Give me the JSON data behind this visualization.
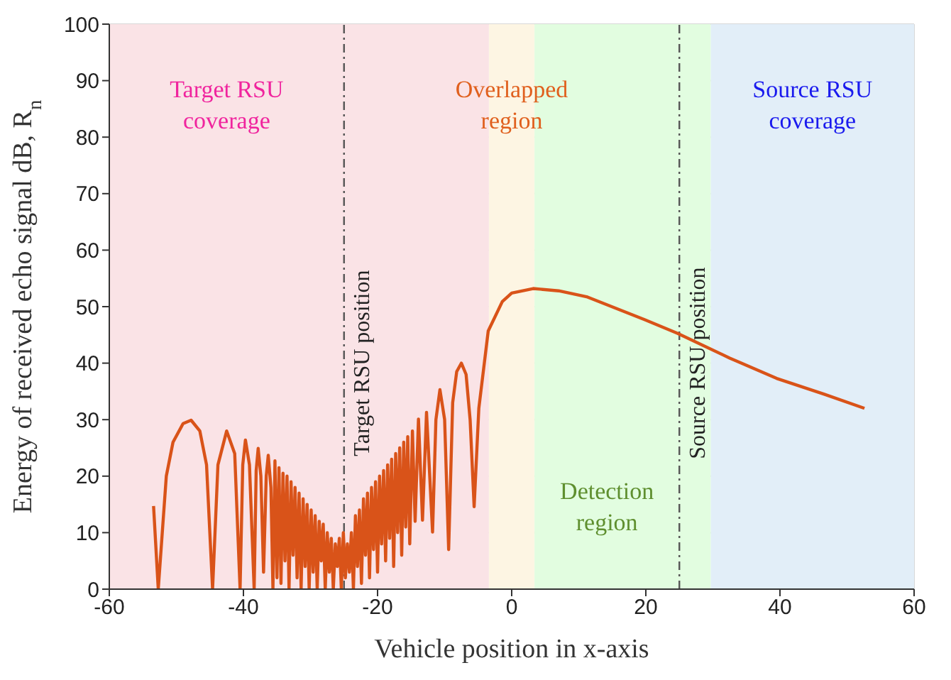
{
  "chart_data": {
    "type": "line",
    "xlabel": "Vehicle position in x-axis",
    "ylabel": "Energy of received echo signal dB, R̃$_{n}$",
    "xlim": [
      -60,
      60
    ],
    "xticks": [
      -60,
      -40,
      -20,
      0,
      20,
      40,
      60
    ],
    "ylim": [
      0,
      100
    ],
    "yticks": [
      0,
      10,
      20,
      30,
      40,
      50,
      60,
      70,
      80,
      90,
      100
    ],
    "grid": true,
    "series": [
      {
        "color": "#d95319",
        "x": [
          -53.4,
          -52.7,
          -51.5,
          -50.5,
          -49,
          -47.8,
          -46.5,
          -45.5,
          -44.6,
          -43.8,
          -42.5,
          -41.3,
          -40.5,
          -40.1,
          -39.7,
          -39.1,
          -38.4,
          -38.1,
          -37.8,
          -37.4,
          -37.0,
          -36.6,
          -36.3,
          -35.9,
          -35.6,
          -35.3,
          -35.0,
          -34.7,
          -34.4,
          -34.1,
          -33.8,
          -33.5,
          -33.2,
          -32.9,
          -32.6,
          -32.3,
          -32.0,
          -31.7,
          -31.4,
          -31.1,
          -30.8,
          -30.5,
          -30.2,
          -29.9,
          -29.6,
          -29.3,
          -29.0,
          -28.7,
          -28.4,
          -28.1,
          -27.8,
          -27.5,
          -27.2,
          -26.9,
          -26.6,
          -26.3,
          -26.0,
          -25.7,
          -25.4,
          -25.1,
          -24.8,
          -24.5,
          -24.2,
          -23.9,
          -23.6,
          -23.3,
          -23.0,
          -22.7,
          -22.4,
          -22.1,
          -21.8,
          -21.5,
          -21.2,
          -20.9,
          -20.6,
          -20.3,
          -20.0,
          -19.7,
          -19.4,
          -19.1,
          -18.8,
          -18.5,
          -18.2,
          -17.9,
          -17.6,
          -17.3,
          -17.0,
          -16.7,
          -16.4,
          -16.1,
          -15.8,
          -15.5,
          -15.2,
          -14.8,
          -14.4,
          -13.9,
          -13.3,
          -12.7,
          -11.8,
          -11.3,
          -10.7,
          -10.0,
          -9.4,
          -8.8,
          -8.2,
          -7.5,
          -6.8,
          -6.2,
          -5.6,
          -4.9,
          -3.5,
          -1.4,
          0,
          3.2,
          7,
          11.3,
          19.8,
          24.7,
          32.5,
          39.5,
          46.6,
          52.6
        ],
        "values": [
          14.7,
          0,
          20,
          26,
          29.3,
          29.9,
          28,
          22,
          0,
          22,
          28,
          24,
          0,
          22,
          26.4,
          22,
          0,
          21,
          24.9,
          20,
          3,
          20,
          23.7,
          18,
          0,
          22.7,
          2,
          21.5,
          1,
          20.5,
          5,
          20,
          0,
          19,
          6,
          18,
          2,
          17,
          0,
          16,
          4,
          15,
          0,
          14,
          3,
          13,
          0,
          12,
          5,
          11.5,
          0,
          10,
          3,
          9,
          0,
          8,
          4,
          9,
          0,
          10,
          2,
          8,
          3,
          10,
          0,
          13,
          4,
          14,
          1,
          16,
          6,
          17,
          2,
          18,
          7,
          19,
          3,
          20,
          8,
          21,
          5,
          22,
          9,
          23,
          4,
          24,
          10,
          25,
          6,
          26,
          11,
          27,
          8,
          28,
          12,
          30.1,
          12.2,
          31.3,
          10.1,
          30,
          35.3,
          30,
          7,
          33,
          38.5,
          40,
          38,
          30,
          14.6,
          32,
          45.7,
          50.9,
          52.4,
          53.2,
          52.8,
          51.7,
          47.7,
          45.3,
          40.9,
          37.3,
          34.5,
          32.0
        ]
      }
    ],
    "bands": [
      {
        "axis": "x",
        "from": -60,
        "to": -3.4,
        "label": "Target RSU coverage",
        "color": "#fae3e6"
      },
      {
        "axis": "x",
        "from": -3.4,
        "to": 3.4,
        "label": "Overlapped region",
        "color": "#fdf5e3"
      },
      {
        "axis": "x",
        "from": 3.4,
        "to": 29.7,
        "label": "Detection region",
        "color": "#e2fde0"
      },
      {
        "axis": "x",
        "from": 29.7,
        "to": 60,
        "label": "Source RSU coverage",
        "color": "#e2eef8"
      }
    ],
    "ref_lines": [
      {
        "axis": "x",
        "value": -25,
        "label": "Target RSU position",
        "color": "#555555",
        "line_style": "dashdot"
      },
      {
        "axis": "x",
        "value": 25,
        "label": "Source RSU position",
        "color": "#555555",
        "line_style": "dashdot"
      }
    ]
  }
}
